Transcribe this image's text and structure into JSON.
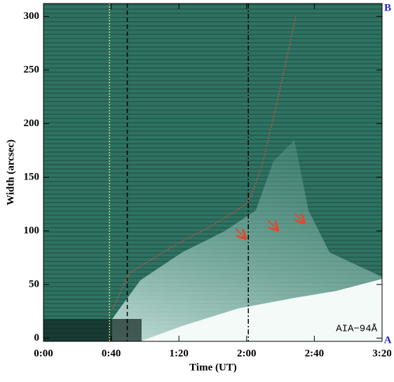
{
  "chart_data": {
    "type": "line",
    "xlabel": "Time (UT)",
    "ylabel": "Width (arcsec)",
    "xlim": [
      0,
      200
    ],
    "ylim": [
      -3,
      312
    ],
    "xticks": [
      {
        "value": 0,
        "label": "0:00"
      },
      {
        "value": 40,
        "label": "0:40"
      },
      {
        "value": 80,
        "label": "1:20"
      },
      {
        "value": 120,
        "label": "2:00"
      },
      {
        "value": 160,
        "label": "2:40"
      },
      {
        "value": 200,
        "label": "3:20"
      }
    ],
    "yticks": [
      0,
      50,
      100,
      150,
      200,
      250,
      300
    ],
    "series": [
      {
        "color": "#d9533a",
        "x": [
          41,
          51,
          78,
          98.5,
          119,
          123,
          129.5,
          138,
          149
        ],
        "values": [
          28,
          61,
          87,
          104,
          124,
          134,
          163,
          220,
          300
        ]
      }
    ],
    "vlines": [
      {
        "value": 39,
        "color": "#ffff66",
        "style": "dotted"
      },
      {
        "value": 49.5,
        "color": "#000000",
        "style": "dashed"
      },
      {
        "value": 121,
        "color": "#000000",
        "style": "dashdot"
      }
    ],
    "annotations": {
      "instrument": "AIA−94Å",
      "top": "B",
      "bottom": "A"
    }
  }
}
